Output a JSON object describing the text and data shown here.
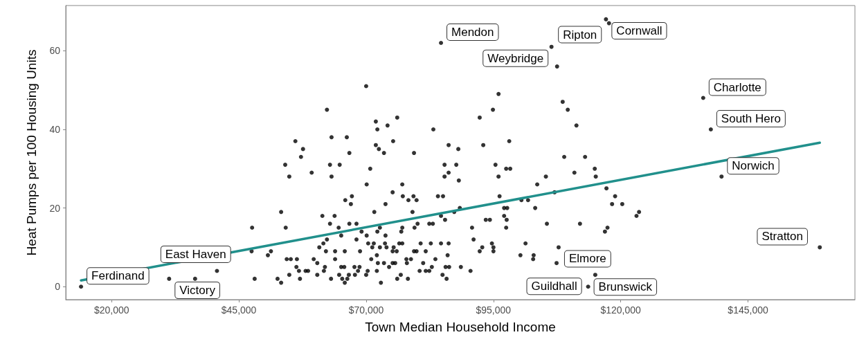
{
  "chart_data": {
    "type": "scatter",
    "xlabel": "Town Median Household Income",
    "ylabel": "Heat Pumps per 100 Housing Units",
    "xlim": [
      11000,
      166000
    ],
    "ylim": [
      -3.3,
      71.5
    ],
    "xticks": [
      {
        "value": 20000,
        "label": "$20,000"
      },
      {
        "value": 45000,
        "label": "$45,000"
      },
      {
        "value": 70000,
        "label": "$70,000"
      },
      {
        "value": 95000,
        "label": "$95,000"
      },
      {
        "value": 120000,
        "label": "$120,000"
      },
      {
        "value": 145000,
        "label": "$145,000"
      }
    ],
    "yticks": [
      0,
      20,
      40,
      60
    ],
    "marker": "circle",
    "series": [
      {
        "color": "#000000",
        "x": [
          62300,
          63200,
          66200,
          56100,
          57600,
          57200,
          66700,
          54100,
          62900,
          64800,
          54900,
          59300,
          63200,
          70800,
          70100,
          65900,
          67200,
          67000,
          53300,
          61400,
          63800,
          47600,
          54200,
          62900,
          64600,
          66700,
          68100,
          69100,
          65100,
          70100,
          62300,
          68100,
          61600,
          70400,
          60800,
          47500,
          51300,
          50700,
          62100,
          63900,
          65800,
          68800,
          54400,
          55200,
          56400,
          59700,
          63900,
          71000,
          60400,
          56300,
          61900,
          65100,
          65700,
          67700,
          68700,
          56800,
          58100,
          58600,
          61700,
          68400,
          70300,
          54900,
          60400,
          64700,
          66600,
          67800,
          70000,
          52600,
          57000,
          63100,
          65300,
          66300,
          53300,
          65800,
          94900,
          92300,
          71900,
          76100,
          72200,
          74200,
          83200,
          75300,
          71900,
          72500,
          73500,
          79400,
          86200,
          88100,
          93000,
          85400,
          87700,
          95400,
          85400,
          86200,
          88200,
          77100,
          75200,
          77200,
          79300,
          84100,
          85100,
          78300,
          79900,
          73800,
          71600,
          79100,
          88400,
          87300,
          84700,
          85500,
          93500,
          94300,
          72700,
          82400,
          83100,
          80100,
          79500,
          77100,
          72200,
          76900,
          73800,
          90800,
          91100,
          71500,
          73700,
          76500,
          77100,
          80700,
          82700,
          84700,
          86200,
          94700,
          71200,
          72700,
          74000,
          75400,
          92800,
          95000,
          75200,
          76000,
          79400,
          79900,
          81700,
          92300,
          95000,
          72100,
          86000,
          77900,
          78800,
          83600,
          72300,
          73500,
          75200,
          75700,
          78000,
          81200,
          74500,
          82900,
          85600,
          86300,
          88600,
          72100,
          80500,
          81700,
          82400,
          90500,
          76800,
          85000,
          76100,
          78200,
          85800,
          72900,
          96000,
          108600,
          109600,
          111300,
          98100,
          108900,
          113000,
          97500,
          98300,
          96000,
          110900,
          114900,
          115100,
          105300,
          103600,
          117200,
          96200,
          107000,
          118900,
          100500,
          101800,
          118300,
          120300,
          97100,
          97700,
          103200,
          123600,
          123100,
          97100,
          97600,
          97500,
          105500,
          112000,
          117400,
          116900,
          101300,
          100300,
          102900,
          102800,
          107400,
          40700,
          48100,
          70000,
          106400,
          107500,
          14000,
          31300,
          36400,
          84700,
          117100,
          117700,
          136200,
          137700,
          139800,
          159100,
          107800,
          113600,
          115000
        ],
        "values": [
          45,
          38,
          38,
          37,
          35,
          33,
          34,
          31,
          31,
          31,
          28,
          29,
          28,
          30,
          26,
          22,
          23,
          21,
          19,
          18,
          18,
          15,
          15,
          16,
          15,
          16,
          16,
          14,
          13,
          13,
          12,
          12,
          11,
          11,
          10,
          9,
          9,
          8,
          9,
          9,
          9,
          9,
          7,
          7,
          7,
          7,
          7,
          7,
          6,
          5,
          5,
          5,
          5,
          5,
          5,
          4,
          4,
          4,
          4,
          4,
          4,
          3,
          3,
          3,
          3,
          3,
          3,
          2,
          2,
          2,
          2,
          2,
          1,
          1,
          45,
          43,
          42,
          43,
          40,
          41,
          40,
          37,
          36,
          35,
          34,
          34,
          36,
          35,
          36,
          31,
          31,
          31,
          28,
          29,
          27,
          26,
          24,
          23,
          23,
          23,
          23,
          22,
          22,
          21,
          19,
          19,
          20,
          19,
          18,
          17,
          17,
          17,
          15,
          16,
          16,
          16,
          15,
          15,
          14,
          14,
          13,
          15,
          12,
          11,
          11,
          11,
          11,
          11,
          11,
          11,
          11,
          11,
          10,
          10,
          10,
          10,
          10,
          10,
          9,
          9,
          9,
          9,
          9,
          9,
          9,
          8,
          8,
          7,
          7,
          7,
          6,
          6,
          6,
          6,
          6,
          6,
          5,
          5,
          5,
          5,
          5,
          4,
          4,
          4,
          4,
          4,
          3,
          3,
          2,
          2,
          2,
          1,
          49,
          47,
          45,
          41,
          37,
          33,
          33,
          30,
          30,
          28,
          29,
          30,
          28,
          28,
          26,
          25,
          23,
          24,
          23,
          22,
          22,
          21,
          21,
          20,
          20,
          20,
          19,
          18,
          18,
          17,
          15,
          16,
          16,
          15,
          14,
          11,
          8,
          8,
          7,
          6,
          4,
          2,
          51,
          61,
          56,
          0,
          2,
          2,
          62,
          68,
          67,
          48,
          40,
          28,
          10,
          10,
          0,
          3
        ]
      },
      {
        "type": "line",
        "color": "#21908c",
        "marker": "none",
        "line_style": "solid",
        "x": [
          14000,
          159100
        ],
        "values": [
          1.6,
          36.6
        ]
      }
    ],
    "annotations": [
      {
        "text": "Ferdinand",
        "x": 14000,
        "y": 0
      },
      {
        "text": "Victory",
        "x": 31300,
        "y": 2
      },
      {
        "text": "East Haven",
        "x": 36400,
        "y": 2
      },
      {
        "text": "Mendon",
        "x": 84700,
        "y": 62
      },
      {
        "text": "Cornwall",
        "x": 117100,
        "y": 68
      },
      {
        "text": "Ripton",
        "x": 117700,
        "y": 67
      },
      {
        "text": "Weybridge",
        "x": 106400,
        "y": 61
      },
      {
        "text": "Charlotte",
        "x": 136200,
        "y": 48
      },
      {
        "text": "South Hero",
        "x": 137700,
        "y": 40
      },
      {
        "text": "Norwich",
        "x": 139800,
        "y": 28
      },
      {
        "text": "Stratton",
        "x": 159100,
        "y": 10
      },
      {
        "text": "Elmore",
        "x": 107800,
        "y": 10
      },
      {
        "text": "Brunswick",
        "x": 113600,
        "y": 0
      },
      {
        "text": "Guildhall",
        "x": 115000,
        "y": 3
      }
    ]
  }
}
